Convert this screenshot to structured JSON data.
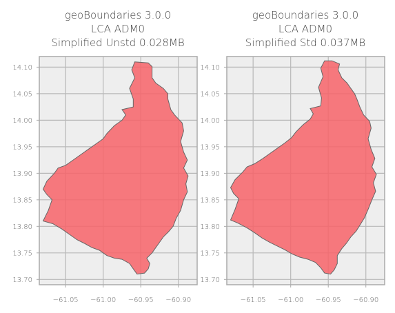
{
  "chart_data": [
    {
      "type": "map",
      "title_lines": [
        "geoBoundaries 3.0.0",
        "LCA ADM0",
        "Simplified Unstd 0.028MB"
      ],
      "x_ticks": [
        -61.05,
        -61.0,
        -60.95,
        -60.9
      ],
      "x_tick_labels": [
        "−61.05",
        "−61.00",
        "−60.95",
        "−60.90"
      ],
      "y_ticks": [
        13.7,
        13.75,
        13.8,
        13.85,
        13.9,
        13.95,
        14.0,
        14.05,
        14.1
      ],
      "y_tick_labels": [
        "13.70",
        "13.75",
        "13.80",
        "13.85",
        "13.90",
        "13.95",
        "14.00",
        "14.05",
        "14.10"
      ],
      "xlim": [
        -61.085,
        -60.875
      ],
      "ylim": [
        13.69,
        14.12
      ],
      "grid": true,
      "fill_color": "#f76368",
      "boundary_lonlat": [
        [
          -60.958,
          14.11
        ],
        [
          -60.94,
          14.108
        ],
        [
          -60.935,
          14.101
        ],
        [
          -60.935,
          14.08
        ],
        [
          -60.93,
          14.07
        ],
        [
          -60.92,
          14.06
        ],
        [
          -60.914,
          14.05
        ],
        [
          -60.914,
          14.04
        ],
        [
          -60.91,
          14.02
        ],
        [
          -60.905,
          14.01
        ],
        [
          -60.895,
          13.995
        ],
        [
          -60.893,
          13.98
        ],
        [
          -60.897,
          13.96
        ],
        [
          -60.893,
          13.94
        ],
        [
          -60.888,
          13.925
        ],
        [
          -60.893,
          13.91
        ],
        [
          -60.887,
          13.895
        ],
        [
          -60.89,
          13.88
        ],
        [
          -60.888,
          13.865
        ],
        [
          -60.893,
          13.85
        ],
        [
          -60.897,
          13.83
        ],
        [
          -60.903,
          13.815
        ],
        [
          -60.907,
          13.8
        ],
        [
          -60.913,
          13.79
        ],
        [
          -60.92,
          13.78
        ],
        [
          -60.925,
          13.77
        ],
        [
          -60.93,
          13.76
        ],
        [
          -60.935,
          13.75
        ],
        [
          -60.942,
          13.74
        ],
        [
          -60.938,
          13.73
        ],
        [
          -60.94,
          13.72
        ],
        [
          -60.945,
          13.712
        ],
        [
          -60.955,
          13.71
        ],
        [
          -60.96,
          13.72
        ],
        [
          -60.965,
          13.73
        ],
        [
          -60.975,
          13.738
        ],
        [
          -60.985,
          13.74
        ],
        [
          -60.995,
          13.745
        ],
        [
          -61.005,
          13.755
        ],
        [
          -61.015,
          13.76
        ],
        [
          -61.025,
          13.768
        ],
        [
          -61.035,
          13.775
        ],
        [
          -61.045,
          13.785
        ],
        [
          -61.055,
          13.795
        ],
        [
          -61.067,
          13.805
        ],
        [
          -61.08,
          13.81
        ],
        [
          -61.073,
          13.83
        ],
        [
          -61.068,
          13.85
        ],
        [
          -61.075,
          13.86
        ],
        [
          -61.08,
          13.87
        ],
        [
          -61.075,
          13.885
        ],
        [
          -61.065,
          13.9
        ],
        [
          -61.06,
          13.91
        ],
        [
          -61.05,
          13.915
        ],
        [
          -61.04,
          13.925
        ],
        [
          -61.03,
          13.935
        ],
        [
          -61.02,
          13.945
        ],
        [
          -61.01,
          13.955
        ],
        [
          -61.0,
          13.965
        ],
        [
          -60.995,
          13.975
        ],
        [
          -60.985,
          13.99
        ],
        [
          -60.975,
          14.0
        ],
        [
          -60.97,
          14.01
        ],
        [
          -60.975,
          14.02
        ],
        [
          -60.96,
          14.025
        ],
        [
          -60.96,
          14.04
        ],
        [
          -60.965,
          14.06
        ],
        [
          -60.958,
          14.08
        ],
        [
          -60.962,
          14.095
        ],
        [
          -60.958,
          14.11
        ]
      ]
    },
    {
      "type": "map",
      "title_lines": [
        "geoBoundaries 3.0.0",
        "LCA ADM0",
        "Simplified Std 0.037MB"
      ],
      "x_ticks": [
        -61.05,
        -61.0,
        -60.95,
        -60.9
      ],
      "x_tick_labels": [
        "−61.05",
        "−61.00",
        "−60.95",
        "−60.90"
      ],
      "y_ticks": [
        13.7,
        13.75,
        13.8,
        13.85,
        13.9,
        13.95,
        14.0,
        14.05,
        14.1
      ],
      "y_tick_labels": [
        "13.70",
        "13.75",
        "13.80",
        "13.85",
        "13.90",
        "13.95",
        "14.00",
        "14.05",
        "14.10"
      ],
      "xlim": [
        -61.085,
        -60.875
      ],
      "ylim": [
        13.69,
        14.12
      ],
      "grid": true,
      "fill_color": "#f76368",
      "boundary_lonlat": [
        [
          -60.955,
          14.112
        ],
        [
          -60.945,
          14.112
        ],
        [
          -60.935,
          14.106
        ],
        [
          -60.937,
          14.095
        ],
        [
          -60.932,
          14.08
        ],
        [
          -60.925,
          14.07
        ],
        [
          -60.92,
          14.06
        ],
        [
          -60.915,
          14.05
        ],
        [
          -60.912,
          14.04
        ],
        [
          -60.908,
          14.025
        ],
        [
          -60.903,
          14.01
        ],
        [
          -60.895,
          13.998
        ],
        [
          -60.893,
          13.985
        ],
        [
          -60.897,
          13.965
        ],
        [
          -60.893,
          13.945
        ],
        [
          -60.888,
          13.928
        ],
        [
          -60.892,
          13.912
        ],
        [
          -60.886,
          13.898
        ],
        [
          -60.89,
          13.882
        ],
        [
          -60.887,
          13.866
        ],
        [
          -60.892,
          13.85
        ],
        [
          -60.897,
          13.832
        ],
        [
          -60.902,
          13.816
        ],
        [
          -60.908,
          13.802
        ],
        [
          -60.913,
          13.791
        ],
        [
          -60.92,
          13.78
        ],
        [
          -60.926,
          13.768
        ],
        [
          -60.932,
          13.758
        ],
        [
          -60.938,
          13.745
        ],
        [
          -60.938,
          13.73
        ],
        [
          -60.942,
          13.718
        ],
        [
          -60.947,
          13.71
        ],
        [
          -60.955,
          13.712
        ],
        [
          -60.96,
          13.722
        ],
        [
          -60.967,
          13.732
        ],
        [
          -60.977,
          13.738
        ],
        [
          -60.988,
          13.742
        ],
        [
          -60.998,
          13.748
        ],
        [
          -61.008,
          13.756
        ],
        [
          -61.018,
          13.763
        ],
        [
          -61.028,
          13.77
        ],
        [
          -61.038,
          13.778
        ],
        [
          -61.048,
          13.788
        ],
        [
          -61.058,
          13.797
        ],
        [
          -61.07,
          13.806
        ],
        [
          -61.08,
          13.812
        ],
        [
          -61.074,
          13.832
        ],
        [
          -61.069,
          13.852
        ],
        [
          -61.076,
          13.862
        ],
        [
          -61.08,
          13.873
        ],
        [
          -61.074,
          13.888
        ],
        [
          -61.064,
          13.902
        ],
        [
          -61.058,
          13.912
        ],
        [
          -61.048,
          13.918
        ],
        [
          -61.038,
          13.927
        ],
        [
          -61.028,
          13.937
        ],
        [
          -61.018,
          13.947
        ],
        [
          -61.008,
          13.957
        ],
        [
          -60.999,
          13.967
        ],
        [
          -60.993,
          13.978
        ],
        [
          -60.983,
          13.992
        ],
        [
          -60.974,
          14.002
        ],
        [
          -60.97,
          14.012
        ],
        [
          -60.974,
          14.022
        ],
        [
          -60.96,
          14.027
        ],
        [
          -60.959,
          14.042
        ],
        [
          -60.963,
          14.062
        ],
        [
          -60.957,
          14.082
        ],
        [
          -60.96,
          14.098
        ],
        [
          -60.955,
          14.112
        ]
      ]
    }
  ]
}
